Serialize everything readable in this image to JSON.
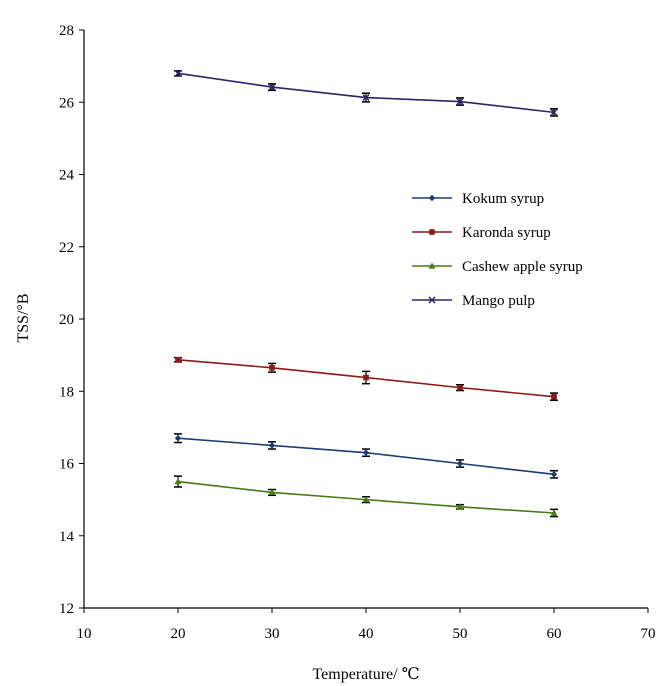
{
  "chart_data": {
    "type": "line",
    "title": "",
    "xlabel": "Temperature/ ℃",
    "ylabel": "TSS/°B",
    "xlim": [
      10,
      70
    ],
    "ylim": [
      12,
      28
    ],
    "xticks": [
      10,
      20,
      30,
      40,
      50,
      60,
      70
    ],
    "yticks": [
      12,
      14,
      16,
      18,
      20,
      22,
      24,
      26,
      28
    ],
    "grid": false,
    "legend_position": "right",
    "x": [
      20,
      30,
      40,
      50,
      60
    ],
    "series": [
      {
        "name": "Kokum syrup",
        "color": "#1f3b73",
        "marker": "diamond",
        "values": [
          16.7,
          16.5,
          16.3,
          16.0,
          15.7
        ],
        "errors": [
          0.12,
          0.1,
          0.1,
          0.1,
          0.1
        ]
      },
      {
        "name": "Karonda syrup",
        "color": "#8b1a1a",
        "marker": "square",
        "values": [
          18.87,
          18.65,
          18.38,
          18.1,
          17.85
        ],
        "errors": [
          0.06,
          0.12,
          0.17,
          0.08,
          0.1
        ]
      },
      {
        "name": "Cashew apple syrup",
        "color": "#4a7a17",
        "marker": "triangle",
        "values": [
          15.5,
          15.2,
          15.0,
          14.8,
          14.63
        ],
        "errors": [
          0.15,
          0.08,
          0.08,
          0.06,
          0.1
        ]
      },
      {
        "name": "Mango pulp",
        "color": "#2e2366",
        "marker": "x",
        "values": [
          26.8,
          26.42,
          26.13,
          26.02,
          25.72
        ],
        "errors": [
          0.07,
          0.09,
          0.12,
          0.1,
          0.1
        ]
      }
    ]
  }
}
